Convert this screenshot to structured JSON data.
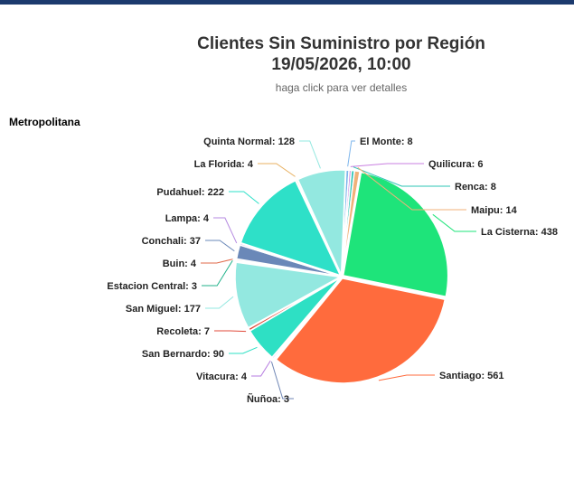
{
  "title_line1": "Clientes Sin Suministro por Región",
  "title_line2": "19/05/2026, 10:00",
  "subtitle": "haga click para ver detalles",
  "region": "Metropolitana",
  "chart_data": {
    "type": "pie",
    "title": "Clientes Sin Suministro por Región 19/05/2026, 10:00",
    "subtitle": "haga click para ver detalles",
    "slices": [
      {
        "name": "El Monte",
        "value": 8,
        "color": "#7cb5ec"
      },
      {
        "name": "Quilicura",
        "value": 6,
        "color": "#c97fe0"
      },
      {
        "name": "Renca",
        "value": 8,
        "color": "#2ec4b6"
      },
      {
        "name": "Maipu",
        "value": 14,
        "color": "#f0b27a"
      },
      {
        "name": "La Cisterna",
        "value": 438,
        "color": "#1ee47a"
      },
      {
        "name": "Santiago",
        "value": 561,
        "color": "#ff6b3d"
      },
      {
        "name": "Ñuñoa",
        "value": 3,
        "color": "#6f86b5"
      },
      {
        "name": "Vitacura",
        "value": 4,
        "color": "#b57be0"
      },
      {
        "name": "San Bernardo",
        "value": 90,
        "color": "#2ee0c4"
      },
      {
        "name": "Recoleta",
        "value": 7,
        "color": "#e04a3a"
      },
      {
        "name": "San Miguel",
        "value": 177,
        "color": "#93e8e0"
      },
      {
        "name": "Estacion Central",
        "value": 3,
        "color": "#20b28a"
      },
      {
        "name": "Buin",
        "value": 4,
        "color": "#e06a4a"
      },
      {
        "name": "Conchali",
        "value": 37,
        "color": "#6a88b8"
      },
      {
        "name": "Lampa",
        "value": 4,
        "color": "#b58ae0"
      },
      {
        "name": "Pudahuel",
        "value": 222,
        "color": "#2ee0c8"
      },
      {
        "name": "La Florida",
        "value": 4,
        "color": "#e8b060"
      },
      {
        "name": "Quinta Normal",
        "value": 128,
        "color": "#93e8e0"
      }
    ]
  }
}
